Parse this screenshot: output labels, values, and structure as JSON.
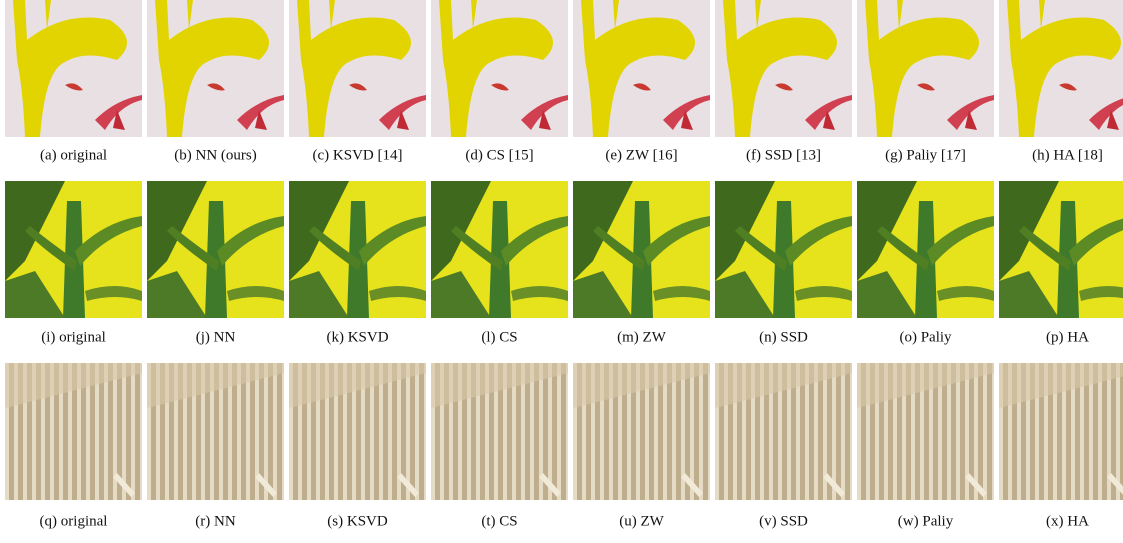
{
  "figure": {
    "rows": [
      {
        "captions": [
          "(a) original",
          "(b) NN (ours)",
          "(c) KSVD [14]",
          "(d) CS [15]",
          "(e) ZW [16]",
          "(f) SSD [13]",
          "(g) Paliy [17]",
          "(h) HA [18]"
        ]
      },
      {
        "captions": [
          "(i) original",
          "(j) NN",
          "(k) KSVD",
          "(l) CS",
          "(m) ZW",
          "(n) SSD",
          "(o) Paliy",
          "(p) HA"
        ]
      },
      {
        "captions": [
          "(q) original",
          "(r) NN",
          "(s) KSVD",
          "(t) CS",
          "(u) ZW",
          "(v) SSD",
          "(w) Paliy",
          "(x) HA"
        ]
      }
    ]
  }
}
